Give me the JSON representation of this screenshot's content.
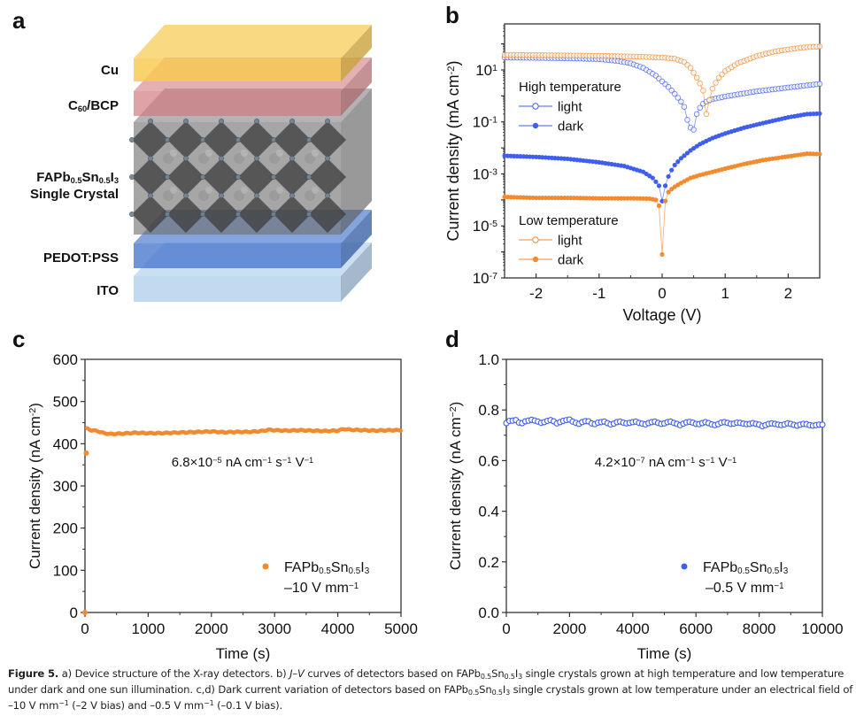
{
  "figure": {
    "panel_labels": [
      "a",
      "b",
      "c",
      "d"
    ],
    "colors": {
      "high_temp_blue": "#3f5ef0",
      "low_temp_orange": "#f28a2e",
      "axis": "#333333",
      "cu_layer": "#f8c94e",
      "c60_layer": "#d27a80",
      "crystal_layer": "#7a7a7a",
      "pedot_layer": "#4f7dd0",
      "ito_layer": "#b6d3ec"
    },
    "caption": {
      "label": "Figure 5.",
      "segments": [
        {
          "t": " a) Device structure of the X-ray detectors. b) "
        },
        {
          "t": "J–V",
          "style": "i"
        },
        {
          "t": " curves of detectors based on FAPb"
        },
        {
          "t": "0.5",
          "style": "sub"
        },
        {
          "t": "Sn"
        },
        {
          "t": "0.5",
          "style": "sub"
        },
        {
          "t": "I"
        },
        {
          "t": "3",
          "style": "sub"
        },
        {
          "t": " single crystals grown at high temperature and low temperature under dark and one sun illumination. c,d) Dark current variation of detectors based on FAPb"
        },
        {
          "t": "0.5",
          "style": "sub"
        },
        {
          "t": "Sn"
        },
        {
          "t": "0.5",
          "style": "sub"
        },
        {
          "t": "I"
        },
        {
          "t": "3",
          "style": "sub"
        },
        {
          "t": " single crystals grown at low temperature under an electrical field of –10 V mm"
        },
        {
          "t": "−1",
          "style": "sup"
        },
        {
          "t": " (–2 V bias) and –0.5 V mm"
        },
        {
          "t": "−1",
          "style": "sup"
        },
        {
          "t": " (–0.1 V bias)."
        }
      ]
    }
  },
  "panel_a": {
    "layers": [
      {
        "id": "cu",
        "label": "Cu",
        "color": "#f8c94e"
      },
      {
        "id": "c60",
        "label": "C60/BCP",
        "label_main": "C",
        "label_sub": "60",
        "label_rest": "/BCP",
        "color": "#d27a80"
      },
      {
        "id": "crystal",
        "label": "FAPb0.5Sn0.5I3 Single Crystal",
        "line1": [
          {
            "t": "FAPb"
          },
          {
            "t": "0.5",
            "sub": true
          },
          {
            "t": "Sn"
          },
          {
            "t": "0.5",
            "sub": true
          },
          {
            "t": "I"
          },
          {
            "t": "3",
            "sub": true
          }
        ],
        "line2": "Single Crystal",
        "color": "#6f6f6f"
      },
      {
        "id": "pedot",
        "label": "PEDOT:PSS",
        "color": "#4f7dd0"
      },
      {
        "id": "ito",
        "label": "ITO",
        "color": "#b6d3ec"
      }
    ]
  },
  "chart_data": [
    {
      "panel": "b",
      "type": "scatter",
      "title": "",
      "xlabel": "Voltage (V)",
      "ylabel": "Current density (mA cm⁻²)",
      "ylabel_parts": {
        "main": "Current density (mA cm",
        "sup": "-2",
        "end": ")"
      },
      "xscale": "linear",
      "yscale": "log",
      "xlim": [
        -2.5,
        2.5
      ],
      "ylim_log10": [
        -7,
        2.77
      ],
      "xticks": [
        -2,
        -1,
        0,
        1,
        2
      ],
      "xtick_labels": [
        "-2",
        "-1",
        "0",
        "1",
        "2"
      ],
      "yticks_log10": [
        1,
        -1,
        -3,
        -5,
        -7
      ],
      "ytick_labels": [
        {
          "base": "10",
          "exp": "1"
        },
        {
          "base": "10",
          "exp": "-1"
        },
        {
          "base": "10",
          "exp": "-3"
        },
        {
          "base": "10",
          "exp": "-5"
        },
        {
          "base": "10",
          "exp": "-7"
        }
      ],
      "legend": [
        {
          "group": "High temperature",
          "position": "upper-left",
          "entries": [
            {
              "name": "light",
              "marker": "open-circle",
              "color": "#3f5ef0"
            },
            {
              "name": "dark",
              "marker": "filled-circle",
              "color": "#3f5ef0"
            }
          ]
        },
        {
          "group": "Low temperature",
          "position": "lower-left",
          "entries": [
            {
              "name": "light",
              "marker": "open-circle",
              "color": "#f28a2e"
            },
            {
              "name": "dark",
              "marker": "filled-circle",
              "color": "#f28a2e"
            }
          ]
        }
      ],
      "series": [
        {
          "name": "High temperature light",
          "color": "#3f5ef0",
          "marker": "open",
          "x": [
            -2.5,
            -2.0,
            -1.5,
            -1.0,
            -0.7,
            -0.5,
            -0.3,
            -0.1,
            0.0,
            0.1,
            0.2,
            0.3,
            0.35,
            0.4,
            0.45,
            0.5,
            0.55,
            0.6,
            0.65,
            0.7,
            0.8,
            1.0,
            1.25,
            1.5,
            2.0,
            2.5
          ],
          "y": [
            30,
            29,
            28,
            26,
            22,
            18,
            12,
            6,
            3.6,
            2.2,
            1.2,
            0.6,
            0.38,
            0.12,
            0.06,
            0.05,
            0.2,
            0.35,
            0.5,
            0.6,
            0.75,
            0.95,
            1.2,
            1.5,
            2.1,
            2.9
          ]
        },
        {
          "name": "High temperature dark",
          "color": "#3f5ef0",
          "marker": "filled",
          "x": [
            -2.5,
            -2.0,
            -1.5,
            -1.0,
            -0.6,
            -0.3,
            -0.15,
            -0.1,
            -0.05,
            0.0,
            0.05,
            0.1,
            0.15,
            0.2,
            0.3,
            0.45,
            0.6,
            0.8,
            1.0,
            1.3,
            1.6,
            2.0,
            2.3,
            2.5
          ],
          "y": [
            0.005,
            0.0045,
            0.0038,
            0.0028,
            0.002,
            0.0012,
            0.0007,
            0.0005,
            0.00035,
            9e-05,
            0.00035,
            0.0008,
            0.0014,
            0.0022,
            0.004,
            0.008,
            0.014,
            0.024,
            0.036,
            0.06,
            0.09,
            0.15,
            0.2,
            0.21
          ]
        },
        {
          "name": "Low temperature light",
          "color": "#f28a2e",
          "marker": "open",
          "x": [
            -2.5,
            -2.0,
            -1.0,
            -0.5,
            0.0,
            0.2,
            0.35,
            0.45,
            0.55,
            0.6,
            0.65,
            0.7,
            0.75,
            0.8,
            0.85,
            0.9,
            1.0,
            1.2,
            1.5,
            1.8,
            2.2,
            2.5
          ],
          "y": [
            38,
            37,
            35,
            33,
            30,
            27,
            20,
            12,
            5,
            3,
            1.6,
            0.2,
            0.7,
            1.9,
            3.2,
            5,
            9,
            18,
            34,
            52,
            72,
            80
          ]
        },
        {
          "name": "Low temperature dark",
          "color": "#f28a2e",
          "marker": "filled",
          "x": [
            -2.5,
            -2.0,
            -1.5,
            -1.0,
            -0.5,
            -0.2,
            -0.1,
            -0.05,
            0.0,
            0.05,
            0.1,
            0.15,
            0.2,
            0.3,
            0.45,
            0.6,
            0.8,
            1.0,
            1.3,
            1.6,
            2.0,
            2.3,
            2.5
          ],
          "y": [
            0.00013,
            0.00012,
            0.00012,
            0.000115,
            0.000115,
            0.000112,
            0.0001,
            6e-05,
            8e-07,
            9e-05,
            0.0002,
            0.00026,
            0.00032,
            0.00045,
            0.0007,
            0.0009,
            0.0012,
            0.0016,
            0.0024,
            0.0034,
            0.0047,
            0.006,
            0.0058
          ]
        }
      ]
    },
    {
      "panel": "c",
      "type": "scatter",
      "title": "",
      "xlabel": "Time (s)",
      "ylabel": "Current density (nA cm⁻²)",
      "ylabel_parts": {
        "main": "Current density (nA cm",
        "sup": "-2",
        "end": ")"
      },
      "xlim": [
        0,
        5000
      ],
      "ylim": [
        0,
        600
      ],
      "xticks": [
        0,
        1000,
        2000,
        3000,
        4000,
        5000
      ],
      "yticks": [
        0,
        100,
        200,
        300,
        400,
        500,
        600
      ],
      "annotation": {
        "main": "6.8×10",
        "exp": "−5",
        "rest": [
          {
            "t": " nA cm"
          },
          {
            "t": "−1",
            "sup": true
          },
          {
            "t": " s"
          },
          {
            "t": "−1",
            "sup": true
          },
          {
            "t": " V"
          },
          {
            "t": "−1",
            "sup": true
          }
        ]
      },
      "legend": {
        "position": "bottom-right",
        "marker": "filled-circle",
        "label": [
          {
            "t": "FAPb"
          },
          {
            "t": "0.5",
            "sub": true
          },
          {
            "t": "Sn"
          },
          {
            "t": "0.5",
            "sub": true
          },
          {
            "t": "I"
          },
          {
            "t": "3",
            "sub": true
          }
        ],
        "condition": "–10 V mm",
        "condition_sup": "−1"
      },
      "color": "#f28a2e",
      "outliers": [
        {
          "x": 0,
          "y": 0
        },
        {
          "x": 20,
          "y": 378
        }
      ],
      "series": [
        {
          "name": "FAPb0.5Sn0.5I3 –10 V mm−1",
          "x": [
            30,
            100,
            200,
            300,
            400,
            600,
            800,
            1000,
            1200,
            1400,
            1600,
            1800,
            2000,
            2200,
            2400,
            2600,
            2800,
            2900,
            3000,
            3200,
            3400,
            3600,
            3800,
            4000,
            4100,
            4200,
            4400,
            4600,
            4800,
            5000
          ],
          "y": [
            436,
            432,
            430,
            425,
            423,
            424,
            426,
            425,
            425,
            426,
            427,
            428,
            429,
            427,
            428,
            428,
            430,
            433,
            432,
            431,
            432,
            431,
            430,
            431,
            435,
            433,
            432,
            431,
            432,
            432
          ]
        }
      ]
    },
    {
      "panel": "d",
      "type": "scatter",
      "title": "",
      "xlabel": "Time (s)",
      "ylabel": "Current density (nA cm⁻²)",
      "ylabel_parts": {
        "main": "Current density (nA cm",
        "sup": "−2",
        "end": ")"
      },
      "xlim": [
        0,
        10000
      ],
      "ylim": [
        0,
        1.0
      ],
      "xticks": [
        0,
        2000,
        4000,
        6000,
        8000,
        10000
      ],
      "yticks": [
        0.0,
        0.2,
        0.4,
        0.6,
        0.8,
        1.0
      ],
      "ytick_labels": [
        "0.0",
        "0.2",
        "0.4",
        "0.6",
        "0.8",
        "1.0"
      ],
      "annotation": {
        "main": "4.2×10",
        "exp": "−7",
        "rest": [
          {
            "t": " nA cm"
          },
          {
            "t": "−1",
            "sup": true
          },
          {
            "t": " s"
          },
          {
            "t": "−1",
            "sup": true
          },
          {
            "t": " V"
          },
          {
            "t": "−1",
            "sup": true
          }
        ]
      },
      "legend": {
        "position": "bottom-right",
        "marker": "filled-circle",
        "label": [
          {
            "t": "FAPb"
          },
          {
            "t": "0.5",
            "sub": true
          },
          {
            "t": "Sn"
          },
          {
            "t": "0.5",
            "sub": true
          },
          {
            "t": "I"
          },
          {
            "t": "3",
            "sub": true
          }
        ],
        "condition": "–0.5 V mm",
        "condition_sup": "−1"
      },
      "color": "#3f5ef0",
      "series": [
        {
          "name": "FAPb0.5Sn0.5I3 –0.5 V mm−1",
          "x": [
            0,
            100,
            200,
            300,
            400,
            500,
            600,
            700,
            800,
            900,
            1000,
            1100,
            1200,
            1300,
            1400,
            1500,
            1600,
            1700,
            1800,
            1900,
            2000,
            2100,
            2200,
            2300,
            2400,
            2500,
            2600,
            2700,
            2800,
            2900,
            3000,
            3100,
            3200,
            3300,
            3400,
            3500,
            3600,
            3700,
            3800,
            3900,
            4000,
            4100,
            4200,
            4300,
            4400,
            4500,
            4600,
            4700,
            4800,
            4900,
            5000,
            5100,
            5200,
            5300,
            5400,
            5500,
            5600,
            5700,
            5800,
            5900,
            6000,
            6100,
            6200,
            6300,
            6400,
            6500,
            6600,
            6700,
            6800,
            6900,
            7000,
            7100,
            7200,
            7300,
            7400,
            7500,
            7600,
            7700,
            7800,
            7900,
            8000,
            8100,
            8200,
            8300,
            8400,
            8500,
            8600,
            8700,
            8800,
            8900,
            9000,
            9100,
            9200,
            9300,
            9400,
            9500,
            9600,
            9700,
            9800,
            9900,
            10000
          ],
          "y": [
            0.748,
            0.757,
            0.758,
            0.76,
            0.75,
            0.748,
            0.755,
            0.758,
            0.761,
            0.758,
            0.754,
            0.749,
            0.752,
            0.757,
            0.76,
            0.755,
            0.747,
            0.752,
            0.757,
            0.76,
            0.762,
            0.754,
            0.749,
            0.745,
            0.752,
            0.756,
            0.755,
            0.747,
            0.744,
            0.75,
            0.752,
            0.754,
            0.748,
            0.743,
            0.746,
            0.752,
            0.754,
            0.75,
            0.747,
            0.749,
            0.752,
            0.754,
            0.749,
            0.746,
            0.743,
            0.748,
            0.752,
            0.754,
            0.749,
            0.745,
            0.747,
            0.752,
            0.754,
            0.749,
            0.745,
            0.74,
            0.746,
            0.751,
            0.753,
            0.75,
            0.745,
            0.744,
            0.748,
            0.752,
            0.748,
            0.743,
            0.74,
            0.744,
            0.75,
            0.752,
            0.749,
            0.745,
            0.746,
            0.75,
            0.749,
            0.746,
            0.744,
            0.745,
            0.748,
            0.745,
            0.742,
            0.736,
            0.74,
            0.745,
            0.747,
            0.745,
            0.742,
            0.74,
            0.743,
            0.747,
            0.745,
            0.741,
            0.738,
            0.742,
            0.745,
            0.744,
            0.74,
            0.738,
            0.74,
            0.742,
            0.742
          ]
        }
      ]
    }
  ]
}
